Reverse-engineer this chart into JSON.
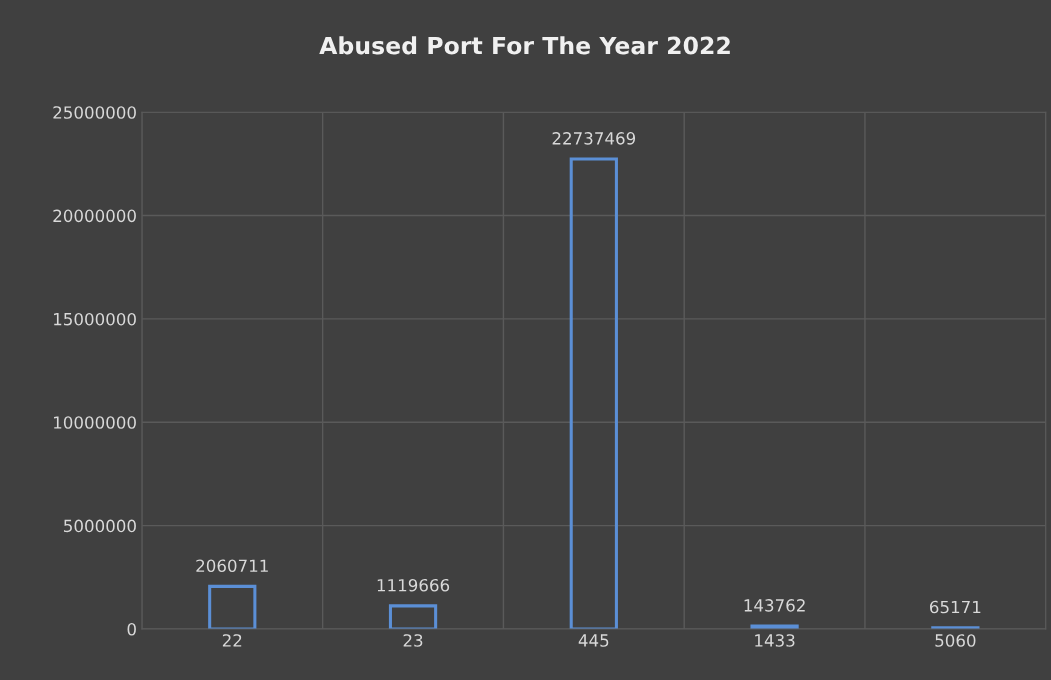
{
  "chart_data": {
    "type": "bar",
    "title": "Abused Port For The Year 2022",
    "categories": [
      "22",
      "23",
      "445",
      "1433",
      "5060"
    ],
    "values": [
      2060711,
      1119666,
      22737469,
      143762,
      65171
    ],
    "color": "#5b8fd6",
    "ylim": [
      0,
      25000000
    ],
    "yticks": [
      0,
      5000000,
      10000000,
      15000000,
      20000000,
      25000000
    ],
    "grid": true,
    "data_labels": true
  }
}
